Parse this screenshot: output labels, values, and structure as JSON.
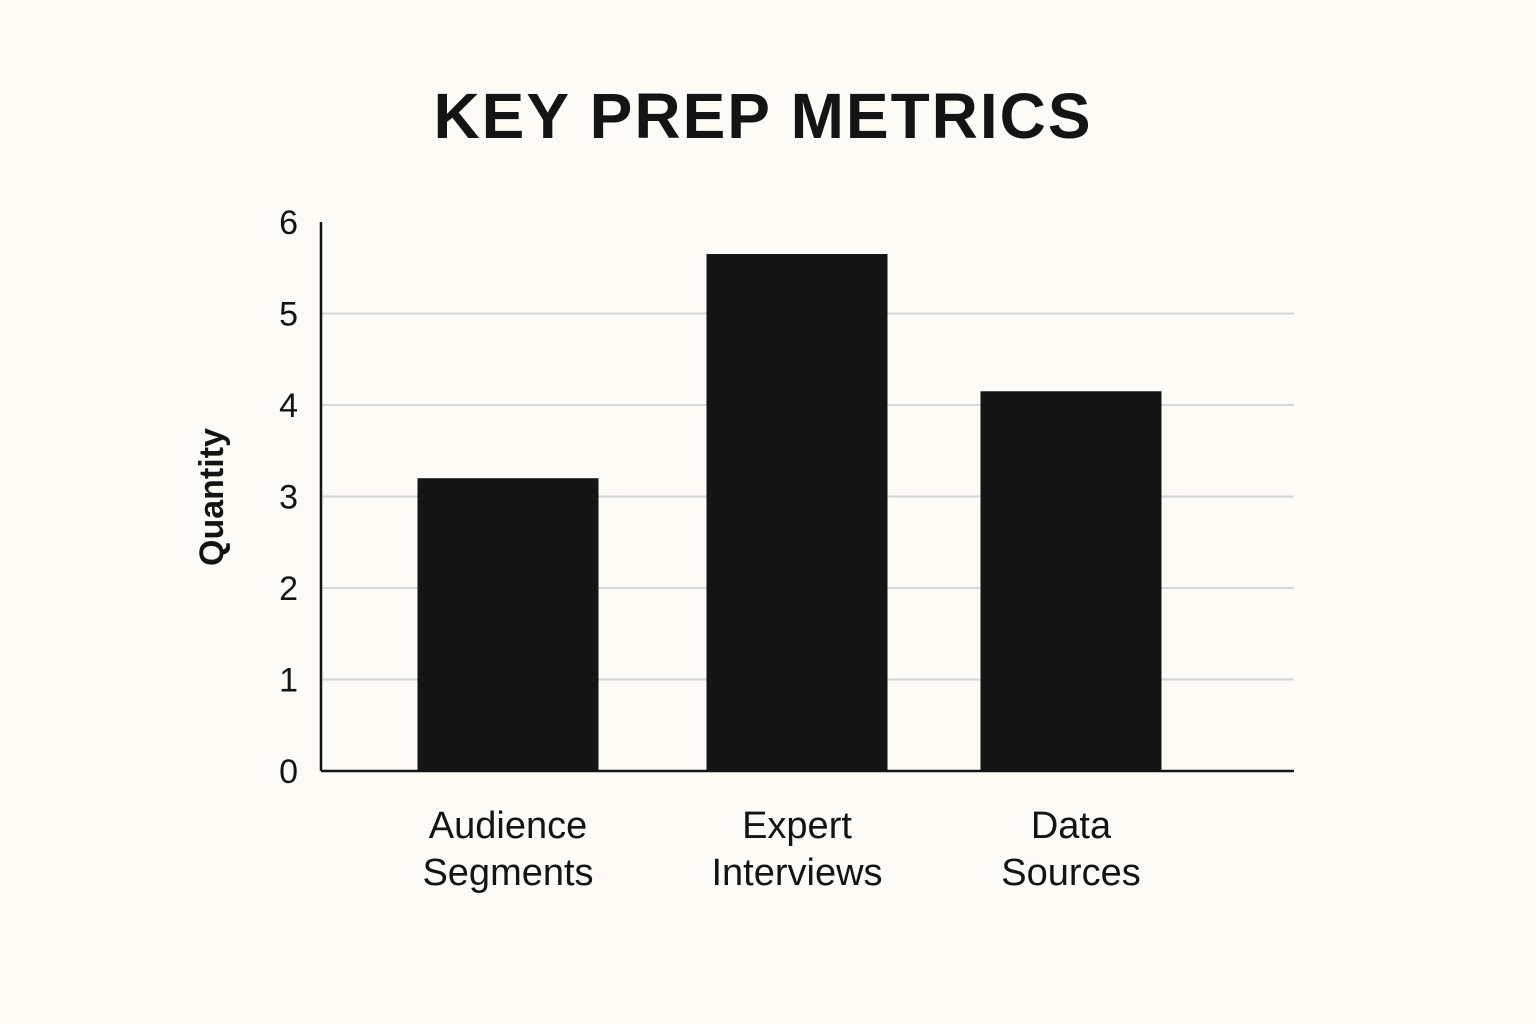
{
  "chart_data": {
    "type": "bar",
    "title": "KEY PREP METRICS",
    "xlabel": "",
    "ylabel": "Quantity",
    "categories": [
      [
        "Audience",
        "Segments"
      ],
      [
        "Expert",
        "Interviews"
      ],
      [
        "Data",
        "Sources"
      ]
    ],
    "values": [
      3.2,
      5.65,
      4.15
    ],
    "ylim": [
      0,
      6
    ],
    "yticks": [
      0,
      1,
      2,
      3,
      4,
      5,
      6
    ],
    "grid": true,
    "legend": "none",
    "colors": {
      "bar": "#141414",
      "grid": "#d6d6d6",
      "axis": "#141414",
      "background": "#fcfbf6"
    }
  }
}
